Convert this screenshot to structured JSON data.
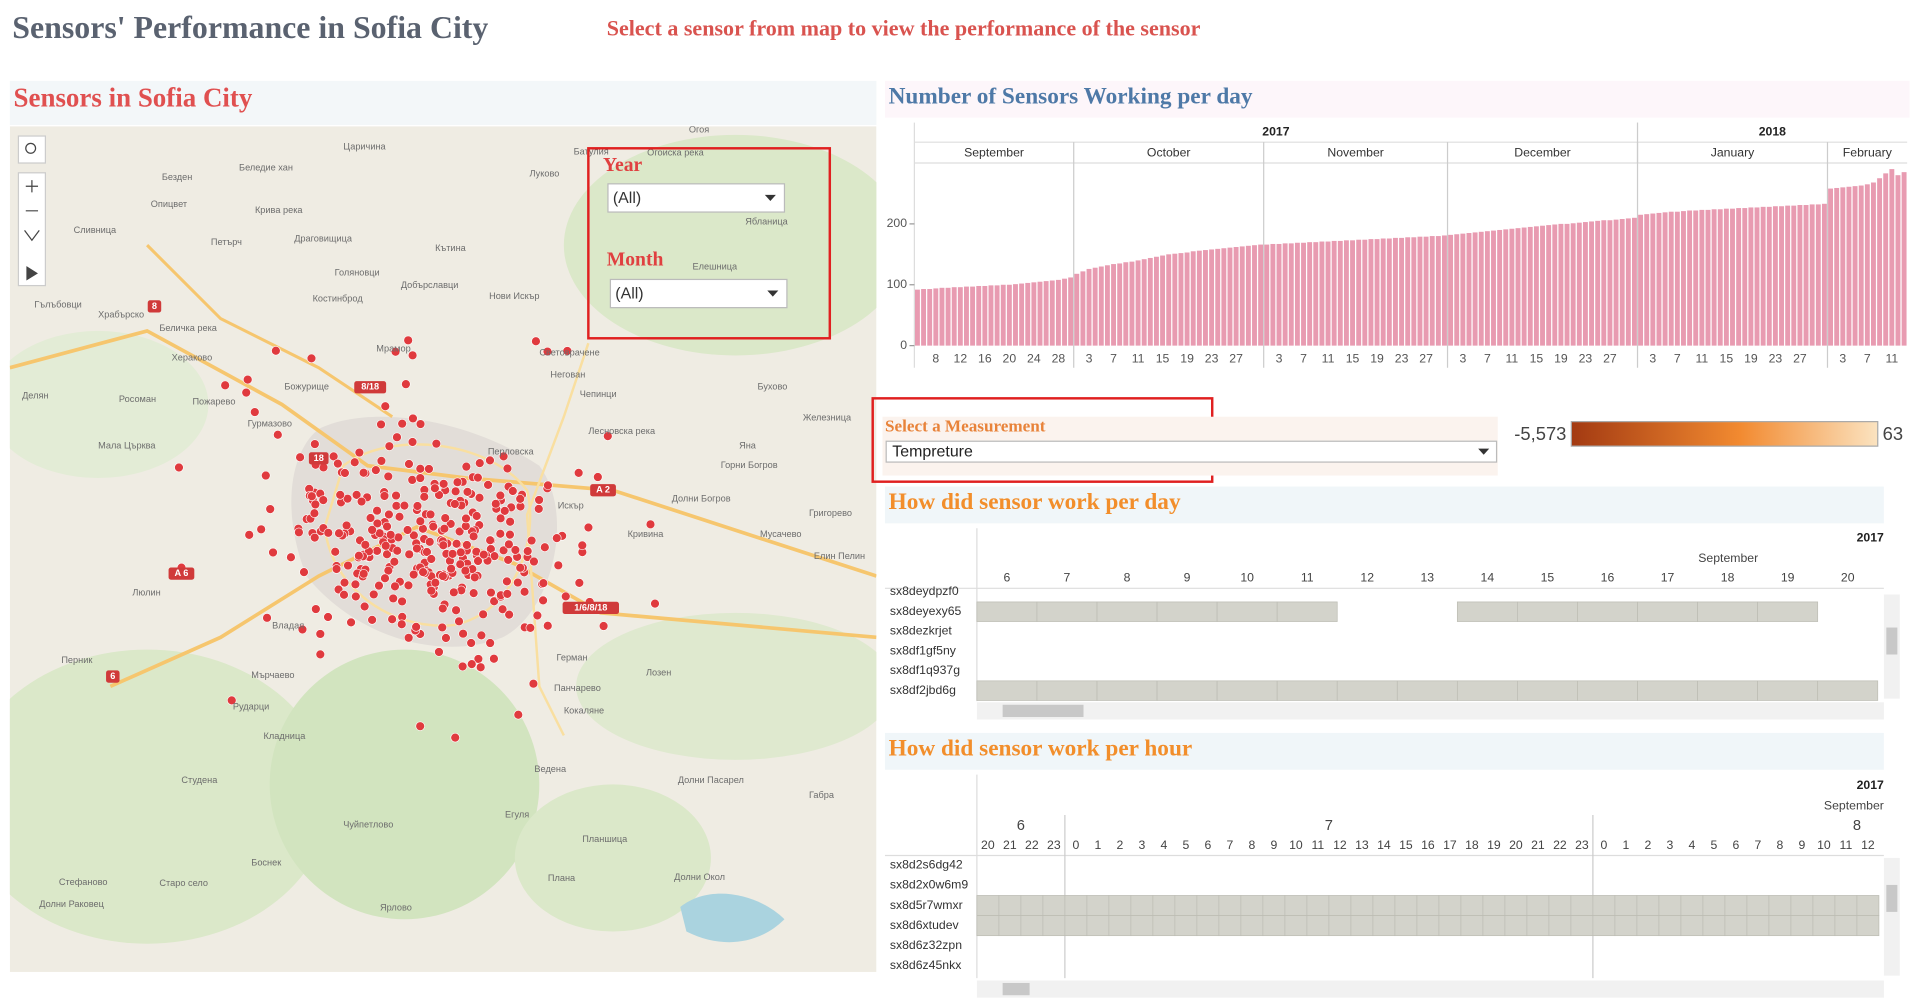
{
  "header": {
    "title": "Sensors' Performance in Sofia City",
    "instruction": "Select a sensor from map to view the performance of the sensor"
  },
  "map_panel": {
    "title": "Sensors in Sofia City",
    "filters": [
      {
        "label": "Year",
        "value": "(All)"
      },
      {
        "label": "Month",
        "value": "(All)"
      }
    ],
    "place_labels": [
      "Огоя",
      "Огоиска река",
      "Луково",
      "Батулия",
      "Царичина",
      "Беледие хан",
      "Безден",
      "Опицвет",
      "Крива река",
      "Сливница",
      "Петърч",
      "Драговищица",
      "Кътина",
      "Голяновци",
      "Костинброд",
      "Добърславци",
      "Нови Искър",
      "Гълъбовци",
      "Храбърско",
      "Беличка река",
      "Хераково",
      "Мрамор",
      "Световрачене",
      "Божурище",
      "Негован",
      "Чепинци",
      "Бухово",
      "Делян",
      "Росоман",
      "Пожарево",
      "Гурмазово",
      "Мала Църква",
      "Лесновска река",
      "Перловска",
      "Горни Богров",
      "Яна",
      "Кривина",
      "Мусачево",
      "Елин Пелин",
      "Григорево",
      "Долни Богров",
      "Лозен",
      "Герман",
      "Панчарево",
      "Кокаляне",
      "Владая",
      "Люлин",
      "Мърчаево",
      "Перник",
      "Рударци",
      "Кладница",
      "Студена",
      "Ведена",
      "Долни Пасарел",
      "Габра",
      "Плана",
      "Ярлово",
      "Стефаново",
      "Старо село",
      "Долни Раковец",
      "Боснек",
      "Чуйпетлово",
      "Егуля",
      "Планшица",
      "Долни Окол",
      "Искър",
      "Ябланица",
      "Елешница",
      "Железница"
    ],
    "road_labels": [
      "8",
      "8/18",
      "18",
      "A 2",
      "A 6",
      "1/6/8/18",
      "6"
    ]
  },
  "chart_data": {
    "type": "bar",
    "title": "Number of Sensors Working per day",
    "color": "#e89bb1",
    "ylim": [
      0,
      300
    ],
    "yticks": [
      0,
      100,
      200
    ],
    "years": [
      {
        "label": "2017",
        "months": [
          {
            "label": "September",
            "ticks": [
              8,
              12,
              16,
              20,
              24,
              28
            ],
            "values": [
              92,
              93,
              93,
              94,
              95,
              95,
              96,
              96,
              97,
              97,
              98,
              98,
              99,
              99,
              100,
              100,
              101,
              102,
              103,
              104,
              105,
              106,
              107,
              108,
              110,
              112
            ]
          },
          {
            "label": "October",
            "ticks": [
              3,
              7,
              11,
              15,
              19,
              23,
              27
            ],
            "values": [
              118,
              122,
              126,
              128,
              130,
              132,
              134,
              135,
              137,
              138,
              140,
              142,
              144,
              146,
              148,
              150,
              151,
              152,
              153,
              155,
              156,
              157,
              158,
              159,
              160,
              161,
              162,
              163,
              164,
              165,
              166
            ]
          },
          {
            "label": "November",
            "ticks": [
              3,
              7,
              11,
              15,
              19,
              23,
              27
            ],
            "values": [
              166,
              167,
              167,
              168,
              168,
              169,
              169,
              170,
              170,
              171,
              171,
              172,
              172,
              173,
              173,
              174,
              174,
              175,
              175,
              176,
              176,
              177,
              177,
              178,
              178,
              179,
              179,
              180,
              180,
              181
            ]
          },
          {
            "label": "December",
            "ticks": [
              3,
              7,
              11,
              15,
              19,
              23,
              27
            ],
            "values": [
              182,
              183,
              184,
              185,
              186,
              187,
              188,
              189,
              190,
              191,
              192,
              193,
              194,
              195,
              196,
              197,
              198,
              199,
              200,
              200,
              201,
              202,
              203,
              204,
              205,
              206,
              206,
              207,
              208,
              209,
              210
            ]
          }
        ]
      },
      {
        "label": "2018",
        "months": [
          {
            "label": "January",
            "ticks": [
              3,
              7,
              11,
              15,
              19,
              23,
              27
            ],
            "values": [
              215,
              216,
              217,
              218,
              219,
              220,
              220,
              221,
              222,
              222,
              223,
              223,
              224,
              224,
              225,
              225,
              226,
              226,
              227,
              227,
              228,
              228,
              229,
              229,
              230,
              230,
              231,
              231,
              232,
              232,
              233
            ]
          },
          {
            "label": "February",
            "ticks": [
              3,
              7,
              11
            ],
            "values": [
              258,
              259,
              260,
              261,
              262,
              263,
              265,
              268,
              275,
              283,
              290,
              280,
              285
            ]
          }
        ]
      }
    ]
  },
  "measurement": {
    "label": "Select a Measurement",
    "value": "Tempreture",
    "legend_min": "-5,573",
    "legend_max": "63"
  },
  "day_heatmap": {
    "title": "How did sensor work per day",
    "year": "2017",
    "month": "September",
    "days": [
      6,
      7,
      8,
      9,
      10,
      11,
      12,
      13,
      14,
      15,
      16,
      17,
      18,
      19,
      20
    ],
    "rows": [
      {
        "name": "sx8deydpzf0",
        "cells": [
          0,
          0,
          0,
          0,
          0,
          0,
          0,
          0,
          0,
          0,
          0,
          0,
          0,
          0,
          0
        ]
      },
      {
        "name": "sx8deyexy65",
        "cells": [
          1,
          1,
          1,
          1,
          1,
          1,
          0,
          0,
          1,
          1,
          1,
          1,
          1,
          1,
          0
        ]
      },
      {
        "name": "sx8dezkrjet",
        "cells": [
          0,
          0,
          0,
          0,
          0,
          0,
          0,
          0,
          0,
          0,
          0,
          0,
          0,
          0,
          0
        ]
      },
      {
        "name": "sx8df1gf5ny",
        "cells": [
          0,
          0,
          0,
          0,
          0,
          0,
          0,
          0,
          0,
          0,
          0,
          0,
          0,
          0,
          0
        ]
      },
      {
        "name": "sx8df1q937g",
        "cells": [
          0,
          0,
          0,
          0,
          0,
          0,
          0,
          0,
          0,
          0,
          0,
          0,
          0,
          0,
          0
        ]
      },
      {
        "name": "sx8df2jbd6g",
        "cells": [
          1,
          1,
          1,
          1,
          1,
          1,
          1,
          1,
          1,
          1,
          1,
          1,
          1,
          1,
          1
        ]
      }
    ]
  },
  "hour_heatmap": {
    "title": "How did sensor work per hour",
    "year": "2017",
    "month": "September",
    "days": [
      6,
      7,
      8
    ],
    "hours": [
      20,
      21,
      22,
      23,
      0,
      1,
      2,
      3,
      4,
      5,
      6,
      7,
      8,
      9,
      10,
      11,
      12,
      13,
      14,
      15,
      16,
      17,
      18,
      19,
      20,
      21,
      22,
      23,
      0,
      1,
      2,
      3,
      4,
      5,
      6,
      7,
      8,
      9,
      10,
      11,
      12
    ],
    "rows": [
      {
        "name": "sx8d2s6dg42",
        "active": false
      },
      {
        "name": "sx8d2x0w6m9",
        "active": false
      },
      {
        "name": "sx8d5r7wmxr",
        "active": true
      },
      {
        "name": "sx8d6xtudev",
        "active": true
      },
      {
        "name": "sx8d6z32zpn",
        "active": false
      },
      {
        "name": "sx8d6z45nkx",
        "active": false
      }
    ]
  }
}
